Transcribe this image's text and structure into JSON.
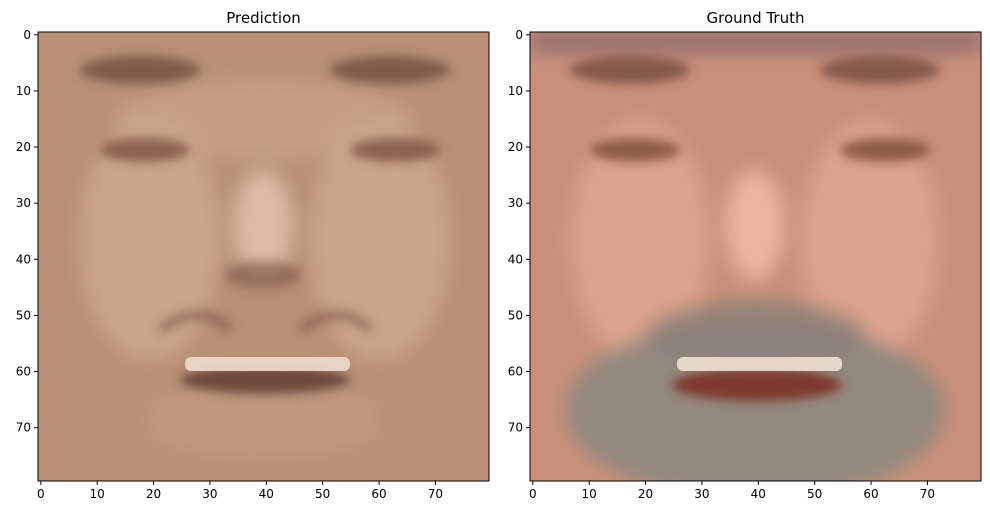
{
  "panels": [
    {
      "title": "Prediction",
      "image_desc_kind": "face-prediction",
      "x_ticks": [
        "0",
        "10",
        "20",
        "30",
        "40",
        "50",
        "60",
        "70"
      ],
      "y_ticks": [
        "0",
        "10",
        "20",
        "30",
        "40",
        "50",
        "60",
        "70"
      ],
      "palette": {
        "base": "#b89078",
        "light": "#dcb8a0",
        "dark": "#6e4a38",
        "teeth": "#f0dccc"
      }
    },
    {
      "title": "Ground Truth",
      "image_desc_kind": "face-ground-truth",
      "x_ticks": [
        "0",
        "10",
        "20",
        "30",
        "40",
        "50",
        "60",
        "70"
      ],
      "y_ticks": [
        "0",
        "10",
        "20",
        "30",
        "40",
        "50",
        "60",
        "70"
      ],
      "palette": {
        "base": "#c8907a",
        "light": "#e8b098",
        "dark": "#6a4438",
        "beard": "#8e8880",
        "teeth": "#f0e0d4"
      }
    }
  ]
}
